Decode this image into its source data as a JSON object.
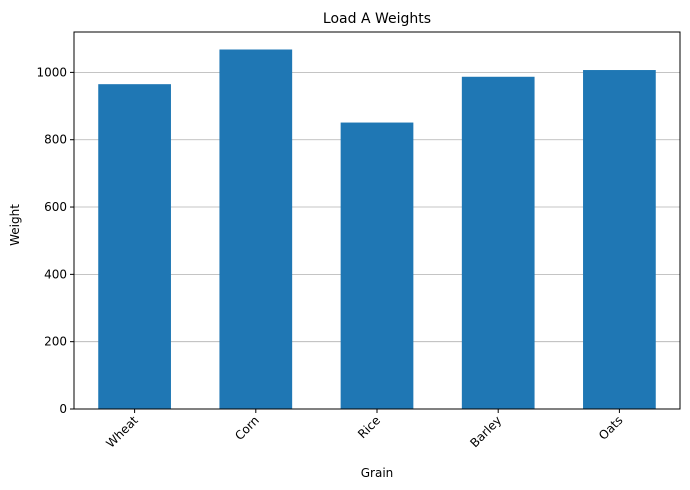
{
  "chart_data": {
    "type": "bar",
    "title": "Load A Weights",
    "xlabel": "Grain",
    "ylabel": "Weight",
    "categories": [
      "Wheat",
      "Corn",
      "Rice",
      "Barley",
      "Oats"
    ],
    "values": [
      965,
      1068,
      851,
      987,
      1007
    ],
    "ylim": [
      0,
      1120
    ],
    "yticks": [
      0,
      200,
      400,
      600,
      800,
      1000
    ],
    "grid": "y",
    "bar_color": "#1f77b4"
  }
}
